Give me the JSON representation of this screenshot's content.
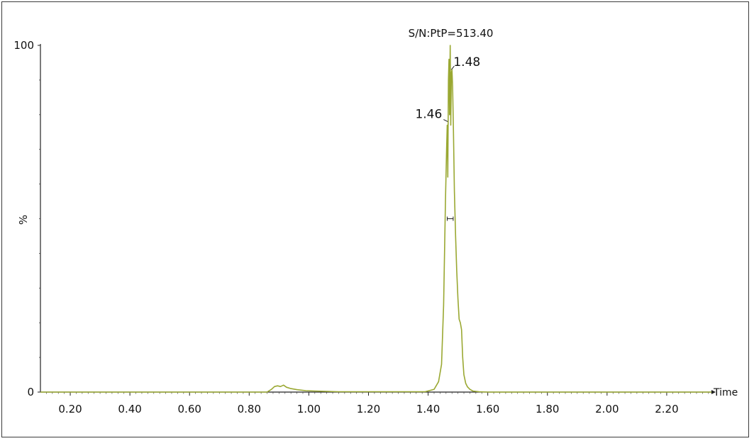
{
  "chart_data": {
    "type": "line",
    "xlabel": "Time",
    "ylabel": "%",
    "xlim": [
      0.1,
      2.35
    ],
    "ylim": [
      0,
      100
    ],
    "x_ticks": [
      "0.20",
      "0.40",
      "0.60",
      "0.80",
      "1.00",
      "1.20",
      "1.40",
      "1.60",
      "1.80",
      "2.00",
      "2.20"
    ],
    "y_ticks": [
      "0",
      "100"
    ],
    "series_color": "#9aa832",
    "annotation": "S/N:PtP=513.40",
    "peak_labels": [
      {
        "text": "1.46",
        "x": 1.466,
        "y": 78
      },
      {
        "text": "1.48",
        "x": 1.478,
        "y": 93
      }
    ],
    "half_height_marker": {
      "x_start": 1.464,
      "x_end": 1.484,
      "y": 50
    },
    "series": [
      {
        "x": [
          0.1,
          0.7,
          0.86,
          0.875,
          0.885,
          0.895,
          0.905,
          0.915,
          0.925,
          0.94,
          0.96,
          0.99,
          1.02,
          1.1,
          1.3,
          1.39,
          1.42,
          1.435,
          1.445,
          1.452,
          1.458,
          1.462,
          1.464,
          1.466,
          1.468,
          1.47,
          1.472,
          1.474,
          1.476,
          1.478,
          1.48,
          1.482,
          1.485,
          1.488,
          1.492,
          1.496,
          1.5,
          1.504,
          1.508,
          1.512,
          1.516,
          1.52,
          1.526,
          1.532,
          1.54,
          1.55,
          1.57,
          1.6,
          2.35
        ],
        "y": [
          0,
          0,
          0,
          0.8,
          1.6,
          1.8,
          1.6,
          2.0,
          1.4,
          1.0,
          0.7,
          0.4,
          0.3,
          0.1,
          0.1,
          0.1,
          0.8,
          3,
          8,
          25,
          55,
          70,
          77,
          62,
          90,
          96,
          80,
          100,
          77,
          92,
          93,
          88,
          75,
          58,
          45,
          35,
          27,
          21,
          20,
          18,
          10,
          5,
          2.5,
          1.5,
          0.8,
          0.3,
          0.1,
          0,
          0
        ]
      }
    ]
  }
}
